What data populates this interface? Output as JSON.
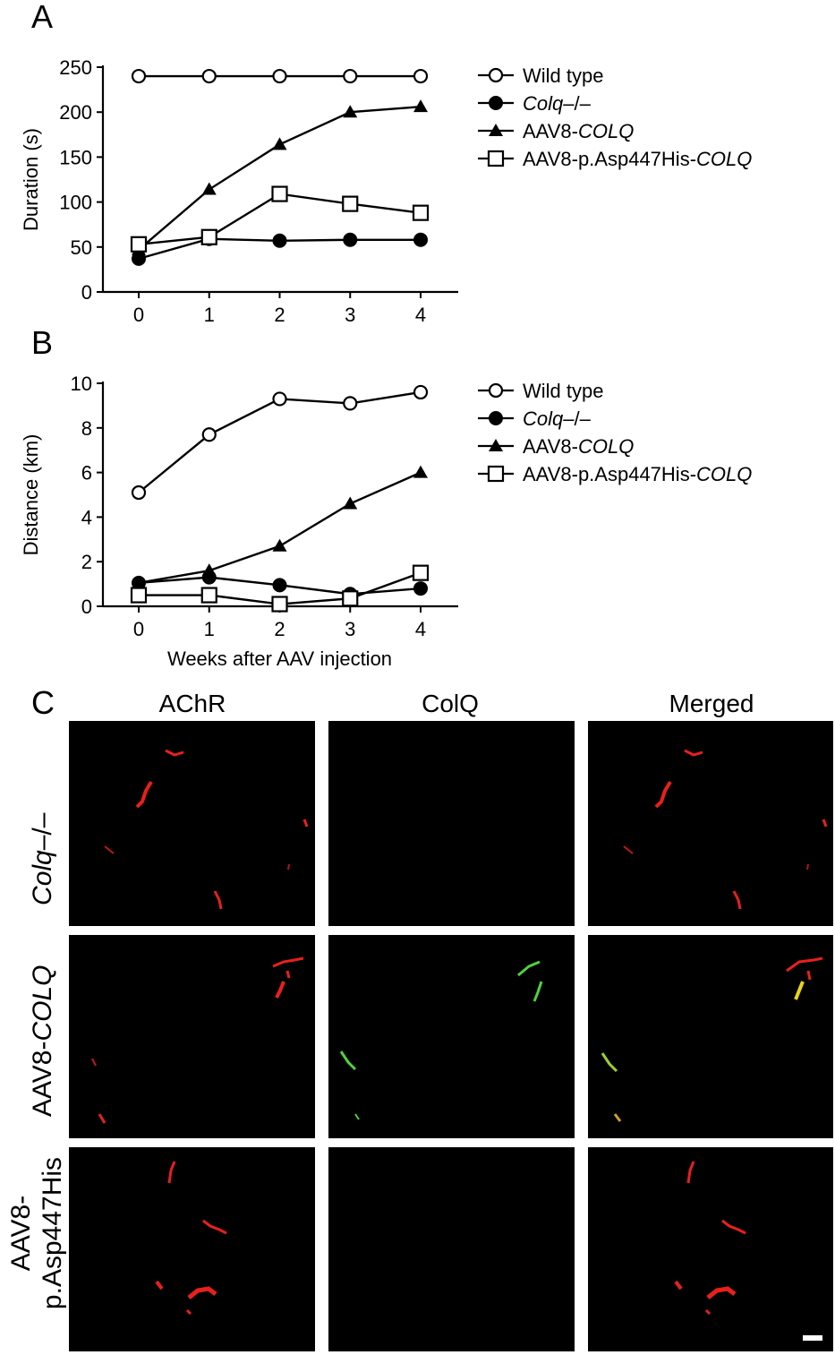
{
  "figure": {
    "panel_labels": {
      "a": "A",
      "b": "B",
      "c": "C"
    },
    "legend": {
      "series": [
        {
          "id": "wild_type",
          "parts": [
            {
              "text": "Wild type",
              "italic": false
            }
          ],
          "marker": "circle-open"
        },
        {
          "id": "colq_ko",
          "parts": [
            {
              "text": "Colq",
              "italic": true
            },
            {
              "text": "–/–",
              "italic": false
            }
          ],
          "marker": "circle-filled"
        },
        {
          "id": "aav8_colq",
          "parts": [
            {
              "text": "AAV8-",
              "italic": false
            },
            {
              "text": "COLQ",
              "italic": true
            }
          ],
          "marker": "triangle-filled"
        },
        {
          "id": "aav8_mut",
          "parts": [
            {
              "text": "AAV8-p.Asp447His-",
              "italic": false
            },
            {
              "text": "COLQ",
              "italic": true
            }
          ],
          "marker": "square-open"
        }
      ]
    },
    "panel_c": {
      "column_headers": [
        "AChR",
        "ColQ",
        "Merged"
      ],
      "row_headers": {
        "r1": [
          {
            "text": "Colq",
            "italic": true
          },
          {
            "text": "–/–",
            "italic": false
          }
        ],
        "r2": [
          {
            "text": "AAV8-",
            "italic": false
          },
          {
            "text": "COLQ",
            "italic": true
          }
        ],
        "r3_line1": "AAV8-",
        "r3_line2": "p.Asp447His"
      }
    }
  },
  "chart_data": [
    {
      "type": "line",
      "panel": "A",
      "xlabel": "",
      "ylabel": "Duration (s)",
      "x": [
        0,
        1,
        2,
        3,
        4
      ],
      "xticks": [
        0,
        1,
        2,
        3,
        4
      ],
      "ylim": [
        0,
        250
      ],
      "yticks": [
        0,
        50,
        100,
        150,
        200,
        250
      ],
      "legend_position": "right",
      "series": [
        {
          "name": "Wild type",
          "marker": "circle-open",
          "values": [
            240,
            240,
            240,
            240,
            240
          ]
        },
        {
          "name": "Colq–/–",
          "marker": "circle-filled",
          "values": [
            37,
            59,
            57,
            58,
            58
          ]
        },
        {
          "name": "AAV8-COLQ",
          "marker": "triangle-filled",
          "values": [
            47,
            114,
            164,
            200,
            206
          ]
        },
        {
          "name": "AAV8-p.Asp447His-COLQ",
          "marker": "square-open",
          "values": [
            53,
            61,
            109,
            98,
            88
          ]
        }
      ]
    },
    {
      "type": "line",
      "panel": "B",
      "xlabel": "Weeks after AAV injection",
      "ylabel": "Distance (km)",
      "x": [
        0,
        1,
        2,
        3,
        4
      ],
      "xticks": [
        0,
        1,
        2,
        3,
        4
      ],
      "ylim": [
        0,
        10
      ],
      "yticks": [
        0,
        2,
        4,
        6,
        8,
        10
      ],
      "legend_position": "right",
      "series": [
        {
          "name": "Wild type",
          "marker": "circle-open",
          "values": [
            5.1,
            7.7,
            9.3,
            9.1,
            9.6
          ]
        },
        {
          "name": "Colq–/–",
          "marker": "circle-filled",
          "values": [
            1.05,
            1.3,
            0.95,
            0.55,
            0.8
          ]
        },
        {
          "name": "AAV8-COLQ",
          "marker": "triangle-filled",
          "values": [
            1.05,
            1.6,
            2.7,
            4.6,
            6.0
          ]
        },
        {
          "name": "AAV8-p.Asp447His-COLQ",
          "marker": "square-open",
          "values": [
            0.5,
            0.5,
            0.1,
            0.35,
            1.5
          ]
        }
      ]
    }
  ],
  "colors": {
    "background": "#ffffff",
    "ink": "#000000",
    "achr": "#e8201c",
    "colq": "#4fd33a",
    "merged_overlap": "#e8d21c"
  }
}
